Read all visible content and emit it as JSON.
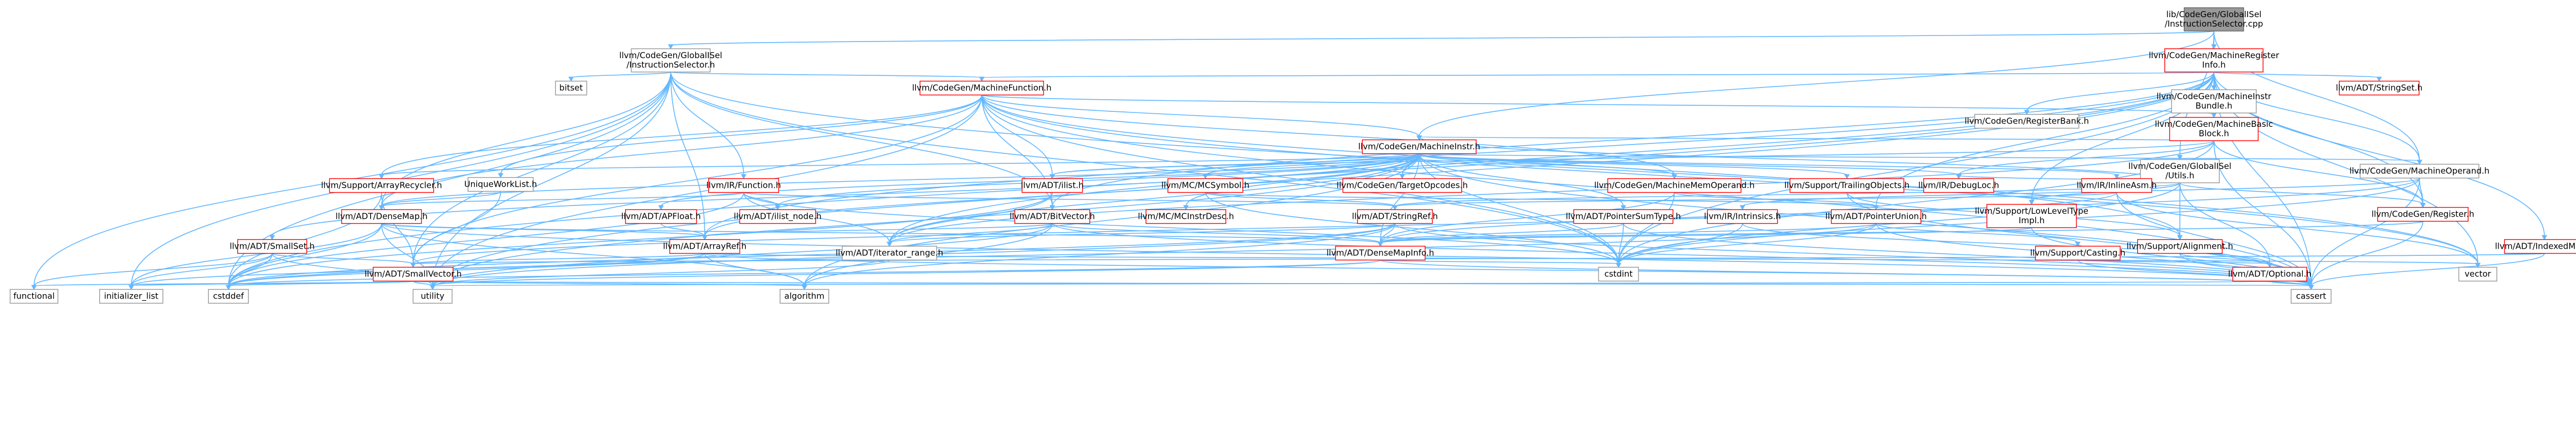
{
  "colors": {
    "edge": "#63b8ff",
    "red_border": "#ff0000",
    "gray_border": "#999999",
    "root_fill": "#999999"
  },
  "nodes": [
    {
      "id": "root",
      "lines": [
        "lib/CodeGen/GlobalISel",
        "/InstructionSelector.cpp"
      ],
      "style": "root"
    },
    {
      "id": "gi_is",
      "lines": [
        "llvm/CodeGen/GlobalISel",
        "/InstructionSelector.h"
      ],
      "style": "gray"
    },
    {
      "id": "mri",
      "lines": [
        "llvm/CodeGen/MachineRegister",
        "Info.h"
      ],
      "style": "red"
    },
    {
      "id": "bitset",
      "lines": [
        "bitset"
      ],
      "style": "gray"
    },
    {
      "id": "mf",
      "lines": [
        "llvm/CodeGen/MachineFunction.h"
      ],
      "style": "red"
    },
    {
      "id": "mib",
      "lines": [
        "llvm/CodeGen/MachineInstr",
        "Bundle.h"
      ],
      "style": "gray"
    },
    {
      "id": "stringset",
      "lines": [
        "llvm/ADT/StringSet.h"
      ],
      "style": "red"
    },
    {
      "id": "regbank",
      "lines": [
        "llvm/CodeGen/RegisterBank.h"
      ],
      "style": "gray"
    },
    {
      "id": "mbb",
      "lines": [
        "llvm/CodeGen/MachineBasic",
        "Block.h"
      ],
      "style": "red"
    },
    {
      "id": "gi_utils",
      "lines": [
        "llvm/CodeGen/GlobalISel",
        "/Utils.h"
      ],
      "style": "gray"
    },
    {
      "id": "mi",
      "lines": [
        "llvm/CodeGen/MachineInstr.h"
      ],
      "style": "red"
    },
    {
      "id": "mo",
      "lines": [
        "llvm/CodeGen/MachineOperand.h"
      ],
      "style": "gray"
    },
    {
      "id": "arrayrecycler",
      "lines": [
        "llvm/Support/ArrayRecycler.h"
      ],
      "style": "red"
    },
    {
      "id": "uniqueworklist",
      "lines": [
        "UniqueWorkList.h"
      ],
      "style": "gray"
    },
    {
      "id": "irfunction",
      "lines": [
        "llvm/IR/Function.h"
      ],
      "style": "red"
    },
    {
      "id": "ilist",
      "lines": [
        "llvm/ADT/ilist.h"
      ],
      "style": "red"
    },
    {
      "id": "mcsymbol",
      "lines": [
        "llvm/MC/MCSymbol.h"
      ],
      "style": "red"
    },
    {
      "id": "targetopcodes",
      "lines": [
        "llvm/CodeGen/TargetOpcodes.h"
      ],
      "style": "red"
    },
    {
      "id": "mmo",
      "lines": [
        "llvm/CodeGen/MachineMemOperand.h"
      ],
      "style": "red"
    },
    {
      "id": "trailing",
      "lines": [
        "llvm/Support/TrailingObjects.h"
      ],
      "style": "red"
    },
    {
      "id": "debugloc",
      "lines": [
        "llvm/IR/DebugLoc.h"
      ],
      "style": "red"
    },
    {
      "id": "inlineasm",
      "lines": [
        "llvm/IR/InlineAsm.h"
      ],
      "style": "red"
    },
    {
      "id": "register",
      "lines": [
        "llvm/CodeGen/Register.h"
      ],
      "style": "red"
    },
    {
      "id": "densemap",
      "lines": [
        "llvm/ADT/DenseMap.h"
      ],
      "style": "red"
    },
    {
      "id": "apfloat",
      "lines": [
        "llvm/ADT/APFloat.h"
      ],
      "style": "red"
    },
    {
      "id": "ilistnode",
      "lines": [
        "llvm/ADT/ilist_node.h"
      ],
      "style": "red"
    },
    {
      "id": "mcinstrdesc",
      "lines": [
        "llvm/MC/MCInstrDesc.h"
      ],
      "style": "red"
    },
    {
      "id": "bitvector",
      "lines": [
        "llvm/ADT/BitVector.h"
      ],
      "style": "red"
    },
    {
      "id": "stringref",
      "lines": [
        "llvm/ADT/StringRef.h"
      ],
      "style": "red"
    },
    {
      "id": "pointersumtype",
      "lines": [
        "llvm/ADT/PointerSumType.h"
      ],
      "style": "red"
    },
    {
      "id": "lowleveltype",
      "lines": [
        "llvm/Support/LowLevelType",
        "Impl.h"
      ],
      "style": "red"
    },
    {
      "id": "intrinsics",
      "lines": [
        "llvm/IR/Intrinsics.h"
      ],
      "style": "red"
    },
    {
      "id": "pointerunion",
      "lines": [
        "llvm/ADT/PointerUnion.h"
      ],
      "style": "red"
    },
    {
      "id": "alignment",
      "lines": [
        "llvm/Support/Alignment.h"
      ],
      "style": "red"
    },
    {
      "id": "indexedmap",
      "lines": [
        "llvm/ADT/IndexedMap.h"
      ],
      "style": "red"
    },
    {
      "id": "smallset",
      "lines": [
        "llvm/ADT/SmallSet.h"
      ],
      "style": "red"
    },
    {
      "id": "arrayref",
      "lines": [
        "llvm/ADT/ArrayRef.h"
      ],
      "style": "red"
    },
    {
      "id": "iterrange",
      "lines": [
        "llvm/ADT/iterator_range.h"
      ],
      "style": "gray"
    },
    {
      "id": "densemapinfo",
      "lines": [
        "llvm/ADT/DenseMapInfo.h"
      ],
      "style": "red"
    },
    {
      "id": "casting",
      "lines": [
        "llvm/Support/Casting.h"
      ],
      "style": "red"
    },
    {
      "id": "optional",
      "lines": [
        "llvm/ADT/Optional.h"
      ],
      "style": "red"
    },
    {
      "id": "smallvector",
      "lines": [
        "llvm/ADT/SmallVector.h"
      ],
      "style": "red"
    },
    {
      "id": "cstdint",
      "lines": [
        "cstdint"
      ],
      "style": "gray"
    },
    {
      "id": "vector",
      "lines": [
        "vector"
      ],
      "style": "gray"
    },
    {
      "id": "functional",
      "lines": [
        "functional"
      ],
      "style": "gray"
    },
    {
      "id": "initlist",
      "lines": [
        "initializer_list"
      ],
      "style": "gray"
    },
    {
      "id": "cstddef",
      "lines": [
        "cstddef"
      ],
      "style": "gray"
    },
    {
      "id": "utility",
      "lines": [
        "utility"
      ],
      "style": "gray"
    },
    {
      "id": "algorithm",
      "lines": [
        "algorithm"
      ],
      "style": "gray"
    },
    {
      "id": "cassert",
      "lines": [
        "cassert"
      ],
      "style": "gray"
    }
  ],
  "edges": [
    [
      "root",
      "gi_is"
    ],
    [
      "root",
      "mri"
    ],
    [
      "root",
      "mi"
    ],
    [
      "root",
      "mo"
    ],
    [
      "root",
      "gi_utils"
    ],
    [
      "gi_is",
      "bitset"
    ],
    [
      "gi_is",
      "mf"
    ],
    [
      "gi_is",
      "irfunction"
    ],
    [
      "gi_is",
      "densemap"
    ],
    [
      "gi_is",
      "smallvector"
    ],
    [
      "gi_is",
      "cstdint"
    ],
    [
      "gi_is",
      "functional"
    ],
    [
      "gi_is",
      "initlist"
    ],
    [
      "gi_is",
      "vector"
    ],
    [
      "gi_is",
      "bitvector"
    ],
    [
      "gi_is",
      "arrayref"
    ],
    [
      "gi_is",
      "utility"
    ],
    [
      "gi_is",
      "cstddef"
    ],
    [
      "mri",
      "mib"
    ],
    [
      "mri",
      "stringset"
    ],
    [
      "mri",
      "regbank"
    ],
    [
      "mri",
      "mbb"
    ],
    [
      "mri",
      "mf"
    ],
    [
      "mri",
      "mo"
    ],
    [
      "mri",
      "indexedmap"
    ],
    [
      "mri",
      "bitvector"
    ],
    [
      "mri",
      "arrayref"
    ],
    [
      "mri",
      "pointerunion"
    ],
    [
      "mri",
      "iterrange"
    ],
    [
      "mri",
      "lowleveltype"
    ],
    [
      "mri",
      "cassert"
    ],
    [
      "mri",
      "cstddef"
    ],
    [
      "mri",
      "cstdint"
    ],
    [
      "mri",
      "utility"
    ],
    [
      "mri",
      "vector"
    ],
    [
      "mri",
      "register"
    ],
    [
      "mf",
      "mbb"
    ],
    [
      "mf",
      "mi"
    ],
    [
      "mf",
      "mmo"
    ],
    [
      "mf",
      "arrayrecycler"
    ],
    [
      "mf",
      "uniqueworklist"
    ],
    [
      "mf",
      "ilist"
    ],
    [
      "mf",
      "densemap"
    ],
    [
      "mf",
      "bitvector"
    ],
    [
      "mf",
      "smallvector"
    ],
    [
      "mf",
      "cassert"
    ],
    [
      "mf",
      "cstdint"
    ],
    [
      "mf",
      "utility"
    ],
    [
      "mf",
      "vector"
    ],
    [
      "mf",
      "alignment"
    ],
    [
      "mbb",
      "mi"
    ],
    [
      "mbb",
      "ilist"
    ],
    [
      "mbb",
      "debugloc"
    ],
    [
      "mbb",
      "register"
    ],
    [
      "mbb",
      "iterrange"
    ],
    [
      "mbb",
      "cassert"
    ],
    [
      "mbb",
      "cstdint"
    ],
    [
      "gi_utils",
      "mi"
    ],
    [
      "gi_utils",
      "register"
    ],
    [
      "gi_utils",
      "lowleveltype"
    ],
    [
      "gi_utils",
      "alignment"
    ],
    [
      "gi_utils",
      "stringref"
    ],
    [
      "gi_utils",
      "debugloc"
    ],
    [
      "gi_utils",
      "optional"
    ],
    [
      "gi_utils",
      "cstdint"
    ],
    [
      "mi",
      "arrayrecycler"
    ],
    [
      "mi",
      "ilist"
    ],
    [
      "mi",
      "mcsymbol"
    ],
    [
      "mi",
      "targetopcodes"
    ],
    [
      "mi",
      "mmo"
    ],
    [
      "mi",
      "trailing"
    ],
    [
      "mi",
      "debugloc"
    ],
    [
      "mi",
      "inlineasm"
    ],
    [
      "mi",
      "mo"
    ],
    [
      "mi",
      "densemapinfo"
    ],
    [
      "mi",
      "pointersumtype"
    ],
    [
      "mi",
      "iterrange"
    ],
    [
      "mi",
      "ilistnode"
    ],
    [
      "mi",
      "mcinstrdesc"
    ],
    [
      "mi",
      "arrayref"
    ],
    [
      "mi",
      "cassert"
    ],
    [
      "mi",
      "cstdint"
    ],
    [
      "mi",
      "utility"
    ],
    [
      "mi",
      "algorithm"
    ],
    [
      "mi",
      "densemap"
    ],
    [
      "mi",
      "apfloat"
    ],
    [
      "mi",
      "smallset"
    ],
    [
      "mo",
      "register"
    ],
    [
      "mo",
      "intrinsics"
    ],
    [
      "mo",
      "cassert"
    ],
    [
      "mo",
      "densemapinfo"
    ],
    [
      "mo",
      "cstdint"
    ],
    [
      "arrayrecycler",
      "smallvector"
    ],
    [
      "arrayrecycler",
      "cstddef"
    ],
    [
      "uniqueworklist",
      "densemap"
    ],
    [
      "uniqueworklist",
      "smallvector"
    ],
    [
      "irfunction",
      "ilistnode"
    ],
    [
      "irfunction",
      "stringref"
    ],
    [
      "irfunction",
      "iterrange"
    ],
    [
      "irfunction",
      "densemap"
    ],
    [
      "irfunction",
      "cstddef"
    ],
    [
      "irfunction",
      "cstdint"
    ],
    [
      "ilist",
      "iterrange"
    ],
    [
      "ilist",
      "cstddef"
    ],
    [
      "mcsymbol",
      "stringref"
    ],
    [
      "mcsymbol",
      "pointerunion"
    ],
    [
      "mcsymbol",
      "cstdint"
    ],
    [
      "mmo",
      "pointerunion"
    ],
    [
      "mmo",
      "densemapinfo"
    ],
    [
      "mmo",
      "cstdint"
    ],
    [
      "trailing",
      "alignment"
    ],
    [
      "trailing",
      "cassert"
    ],
    [
      "inlineasm",
      "stringref"
    ],
    [
      "inlineasm",
      "smallvector"
    ],
    [
      "inlineasm",
      "cassert"
    ],
    [
      "inlineasm",
      "vector"
    ],
    [
      "register",
      "densemapinfo"
    ],
    [
      "register",
      "cassert"
    ],
    [
      "densemap",
      "densemapinfo"
    ],
    [
      "densemap",
      "arrayref"
    ],
    [
      "densemap",
      "cassert"
    ],
    [
      "densemap",
      "cstddef"
    ],
    [
      "densemap",
      "utility"
    ],
    [
      "densemap",
      "algorithm"
    ],
    [
      "densemap",
      "initlist"
    ],
    [
      "apfloat",
      "arrayref"
    ],
    [
      "bitvector",
      "arrayref"
    ],
    [
      "bitvector",
      "densemapinfo"
    ],
    [
      "bitvector",
      "iterrange"
    ],
    [
      "bitvector",
      "algorithm"
    ],
    [
      "bitvector",
      "cassert"
    ],
    [
      "bitvector",
      "utility"
    ],
    [
      "stringref",
      "densemapinfo"
    ],
    [
      "stringref",
      "iterrange"
    ],
    [
      "stringref",
      "cstddef"
    ],
    [
      "stringref",
      "utility"
    ],
    [
      "stringref",
      "algorithm"
    ],
    [
      "stringref",
      "cassert"
    ],
    [
      "pointersumtype",
      "densemapinfo"
    ],
    [
      "pointersumtype",
      "cassert"
    ],
    [
      "pointersumtype",
      "cstdint"
    ],
    [
      "lowleveltype",
      "densemapinfo"
    ],
    [
      "lowleveltype",
      "cassert"
    ],
    [
      "intrinsics",
      "optional"
    ],
    [
      "intrinsics",
      "cstdint"
    ],
    [
      "pointerunion",
      "densemapinfo"
    ],
    [
      "pointerunion",
      "casting"
    ],
    [
      "pointerunion",
      "cassert"
    ],
    [
      "pointerunion",
      "cstddef"
    ],
    [
      "pointerunion",
      "cstdint"
    ],
    [
      "alignment",
      "optional"
    ],
    [
      "alignment",
      "cassert"
    ],
    [
      "indexedmap",
      "smallvector"
    ],
    [
      "indexedmap",
      "cassert"
    ],
    [
      "smallset",
      "smallvector"
    ],
    [
      "smallset",
      "cstddef"
    ],
    [
      "smallset",
      "functional"
    ],
    [
      "smallset",
      "utility"
    ],
    [
      "smallset",
      "initlist"
    ],
    [
      "arrayref",
      "smallvector"
    ],
    [
      "arrayref",
      "cassert"
    ],
    [
      "arrayref",
      "cstddef"
    ],
    [
      "arrayref",
      "algorithm"
    ],
    [
      "arrayref",
      "initlist"
    ],
    [
      "arrayref",
      "vector"
    ],
    [
      "iterrange",
      "utility"
    ],
    [
      "densemapinfo",
      "cassert"
    ],
    [
      "densemapinfo",
      "cstddef"
    ],
    [
      "densemapinfo",
      "cstdint"
    ],
    [
      "densemapinfo",
      "utility"
    ],
    [
      "casting",
      "optional"
    ],
    [
      "casting",
      "cassert"
    ],
    [
      "optional",
      "utility"
    ],
    [
      "optional",
      "cassert"
    ],
    [
      "smallvector",
      "cstddef"
    ],
    [
      "smallvector",
      "utility"
    ],
    [
      "smallvector",
      "algorithm"
    ],
    [
      "smallvector",
      "cassert"
    ],
    [
      "smallvector",
      "initlist"
    ],
    [
      "smallvector",
      "functional"
    ]
  ]
}
